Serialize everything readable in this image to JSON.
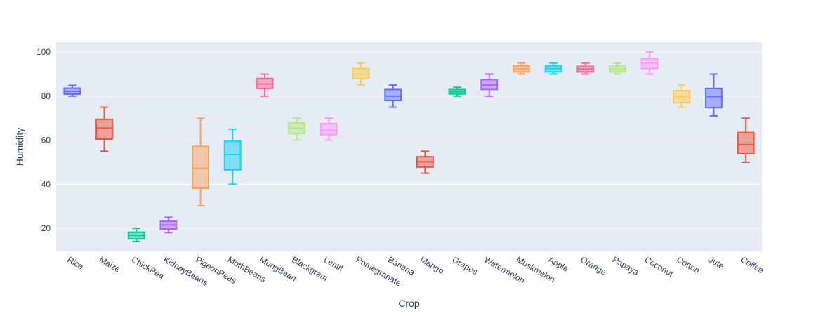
{
  "chart_data": {
    "type": "box",
    "title": "",
    "xlabel": "Crop",
    "ylabel": "Humidity",
    "ylim": [
      9.5,
      104.5
    ],
    "yticks": [
      20,
      40,
      60,
      80,
      100
    ],
    "grid": true,
    "background": "#e5ecf6",
    "series": [
      {
        "name": "Rice",
        "color": "#636efa",
        "min": 80,
        "q1": 80.9,
        "median": 82.2,
        "q3": 83.6,
        "max": 84.9
      },
      {
        "name": "Maize",
        "color": "#ef553b",
        "min": 55,
        "q1": 60.5,
        "median": 65.5,
        "q3": 69.5,
        "max": 75
      },
      {
        "name": "ChickPea",
        "color": "#00cc96",
        "min": 14,
        "q1": 15.2,
        "median": 16.8,
        "q3": 18.2,
        "max": 20
      },
      {
        "name": "KidneyBeans",
        "color": "#ab63fa",
        "min": 18,
        "q1": 19.7,
        "median": 21.5,
        "q3": 23.2,
        "max": 25
      },
      {
        "name": "PigeonPeas",
        "color": "#ffa15a",
        "min": 30.2,
        "q1": 38.2,
        "median": 47.2,
        "q3": 57.2,
        "max": 70
      },
      {
        "name": "MothBeans",
        "color": "#19d3f3",
        "min": 40,
        "q1": 46.5,
        "median": 53.5,
        "q3": 59.5,
        "max": 65
      },
      {
        "name": "MungBean",
        "color": "#ff6692",
        "min": 80,
        "q1": 83.5,
        "median": 85.5,
        "q3": 88,
        "max": 90
      },
      {
        "name": "Blackgram",
        "color": "#b6e880",
        "min": 60,
        "q1": 63,
        "median": 65.5,
        "q3": 67.8,
        "max": 70
      },
      {
        "name": "Lentil",
        "color": "#ff97ff",
        "min": 60,
        "q1": 62.5,
        "median": 64.5,
        "q3": 67.5,
        "max": 70
      },
      {
        "name": "Pomegranate",
        "color": "#fecb52",
        "min": 85,
        "q1": 88,
        "median": 90,
        "q3": 92.5,
        "max": 95
      },
      {
        "name": "Banana",
        "color": "#636efa",
        "min": 75,
        "q1": 78,
        "median": 80,
        "q3": 83,
        "max": 85
      },
      {
        "name": "Mango",
        "color": "#ef553b",
        "min": 45,
        "q1": 47.8,
        "median": 50.2,
        "q3": 52.5,
        "max": 55
      },
      {
        "name": "Grapes",
        "color": "#00cc96",
        "min": 80,
        "q1": 81,
        "median": 82,
        "q3": 83,
        "max": 84
      },
      {
        "name": "Watermelon",
        "color": "#ab63fa",
        "min": 80,
        "q1": 83,
        "median": 85,
        "q3": 87.5,
        "max": 90
      },
      {
        "name": "Muskmelon",
        "color": "#ffa15a",
        "min": 90,
        "q1": 91,
        "median": 92.3,
        "q3": 93.8,
        "max": 95
      },
      {
        "name": "Apple",
        "color": "#19d3f3",
        "min": 90,
        "q1": 91,
        "median": 92.5,
        "q3": 93.8,
        "max": 95
      },
      {
        "name": "Orange",
        "color": "#ff6692",
        "min": 90,
        "q1": 91,
        "median": 92.3,
        "q3": 93.5,
        "max": 95
      },
      {
        "name": "Papaya",
        "color": "#b6e880",
        "min": 90,
        "q1": 91,
        "median": 92.3,
        "q3": 93.5,
        "max": 95
      },
      {
        "name": "Coconut",
        "color": "#ff97ff",
        "min": 90,
        "q1": 92.5,
        "median": 95,
        "q3": 97,
        "max": 100
      },
      {
        "name": "Cotton",
        "color": "#fecb52",
        "min": 75,
        "q1": 77,
        "median": 79.8,
        "q3": 82.5,
        "max": 85
      },
      {
        "name": "Jute",
        "color": "#636efa",
        "min": 71,
        "q1": 74.8,
        "median": 79.8,
        "q3": 83.5,
        "max": 90
      },
      {
        "name": "Coffee",
        "color": "#ef553b",
        "min": 50,
        "q1": 53.8,
        "median": 58,
        "q3": 63.5,
        "max": 70
      }
    ]
  }
}
